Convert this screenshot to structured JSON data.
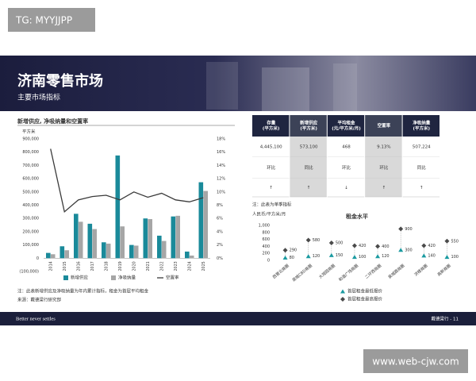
{
  "watermarks": {
    "top": "TG: MYYJJPP",
    "bottom": "www.web-cjw.com"
  },
  "header": {
    "title": "济南零售市场",
    "subtitle": "主要市场指标"
  },
  "notes": [
    "注：此表新增供应及净吸纳量为年内累计指标，租金为首层平均租金",
    "来源：戴德梁行研究部"
  ],
  "table": {
    "header": [
      [
        "存量",
        "(平方米)"
      ],
      [
        "新增供应",
        "(平方米)"
      ],
      [
        "平均租金",
        "(元/平方米/月)"
      ],
      [
        "空置率"
      ],
      [
        "净吸纳量",
        "(平方米)"
      ]
    ],
    "rows": [
      [
        "4,445,100",
        "573,100",
        "468",
        "9.13%",
        "507,224"
      ],
      [
        "环比",
        "同比",
        "环比",
        "环比",
        "同比"
      ],
      [
        "↑",
        "↑",
        "↓",
        "↑",
        "↑"
      ]
    ],
    "note": "注：此表为单季指标"
  },
  "footer": {
    "tagline": "Better never settles",
    "page": "戴德梁行 - 11"
  },
  "chart_data": [
    {
      "type": "bar-line",
      "title": "新增供应, 净吸纳量和空置率",
      "y_label": "平方米",
      "categories": [
        "2014",
        "2015",
        "2016",
        "2017",
        "2018",
        "2019",
        "2020",
        "2021",
        "2022",
        "2023",
        "2024",
        "2025"
      ],
      "series": [
        {
          "name": "新增供应",
          "color": "#1a8a9a",
          "values": [
            40000,
            90000,
            335000,
            260000,
            120000,
            775000,
            100000,
            300000,
            170000,
            315000,
            50000,
            573100
          ]
        },
        {
          "name": "净吸纳量",
          "color": "#a6a6a6",
          "values": [
            30000,
            60000,
            275000,
            220000,
            110000,
            240000,
            95000,
            295000,
            130000,
            320000,
            20000,
            507224
          ]
        },
        {
          "name": "空置率",
          "color": "#3a3a3a",
          "axis": "y2",
          "values": [
            16.5,
            7.0,
            8.8,
            9.3,
            9.5,
            8.8,
            10.0,
            9.2,
            9.8,
            8.8,
            8.5,
            9.13
          ]
        }
      ],
      "ylim": [
        -100000,
        900000
      ],
      "yticks": [
        {
          "value": -100000,
          "label": "(100,000)"
        },
        0,
        {
          "value": 100000,
          "label": "100,000"
        },
        {
          "value": 200000,
          "label": "200,000"
        },
        {
          "value": 300000,
          "label": "300,000"
        },
        {
          "value": 400000,
          "label": "400,000"
        },
        {
          "value": 500000,
          "label": "500,000"
        },
        {
          "value": 600000,
          "label": "600,000"
        },
        {
          "value": 700000,
          "label": "700,000"
        },
        {
          "value": 800000,
          "label": "800,000"
        },
        {
          "value": 900000,
          "label": "900,000"
        }
      ],
      "y2lim": [
        -2,
        18
      ],
      "y2ticks": [
        {
          "value": 0,
          "label": "0%"
        },
        {
          "value": 2,
          "label": "2%"
        },
        {
          "value": 4,
          "label": "4%"
        },
        {
          "value": 6,
          "label": "6%"
        },
        {
          "value": 8,
          "label": "8%"
        },
        {
          "value": 10,
          "label": "10%"
        },
        {
          "value": 12,
          "label": "12%"
        },
        {
          "value": 14,
          "label": "14%"
        },
        {
          "value": 16,
          "label": "16%"
        },
        {
          "value": 18,
          "label": "18%"
        }
      ]
    },
    {
      "type": "dumbbell",
      "title": "租金水平",
      "y_label": "人民币/平方米/月",
      "categories": [
        "西营北商圈",
        "泉城CBD商圈",
        "大观园商圈",
        "和谐广场商圈",
        "二环西商圈",
        "泉城路商圈",
        "洪楼商圈",
        "高新商圈"
      ],
      "series": [
        {
          "name": "首层租金最低报价",
          "color": "#1a9aa0",
          "values": [
            80,
            120,
            150,
            100,
            120,
            300,
            140,
            100
          ]
        },
        {
          "name": "首层租金最高报价",
          "color": "#4a4a4a",
          "values": [
            290,
            580,
            500,
            420,
            400,
            900,
            420,
            550
          ]
        }
      ],
      "ylim": [
        0,
        1000
      ],
      "yticks": [
        0,
        200,
        400,
        600,
        800,
        {
          "value": 1000,
          "label": "1,000"
        }
      ]
    }
  ]
}
